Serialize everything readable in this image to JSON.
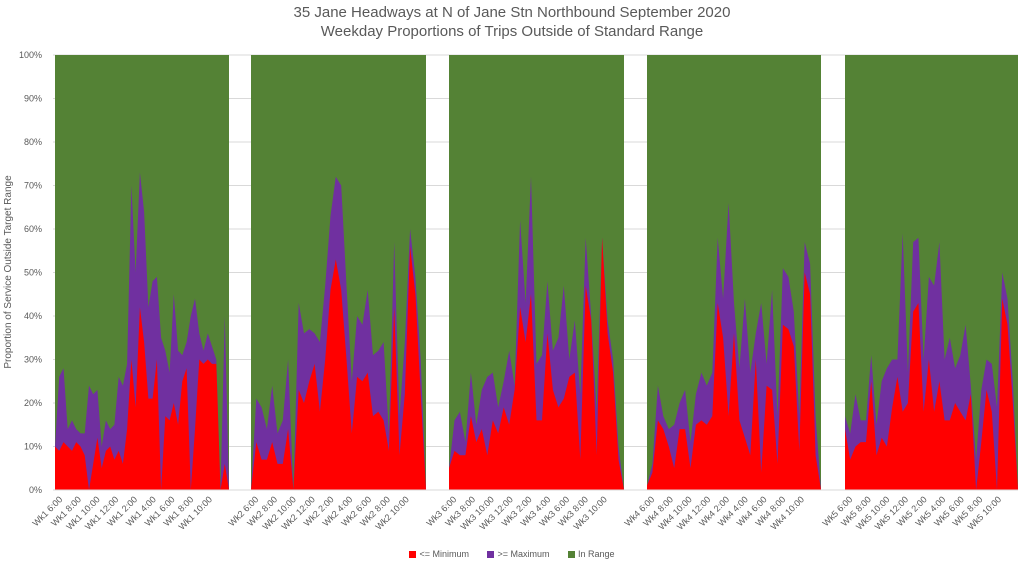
{
  "chart_data": {
    "type": "area",
    "stacked": true,
    "title": "35 Jane Headways at N of Jane Stn Northbound September 2020",
    "subtitle": "Weekday Proportions of Trips Outside of Standard Range",
    "ylabel": "Proportion of Service Outside Target Range",
    "xlabel": "",
    "ylim": [
      0,
      1
    ],
    "yticks": [
      "0%",
      "10%",
      "20%",
      "30%",
      "40%",
      "50%",
      "60%",
      "70%",
      "80%",
      "90%",
      "100%"
    ],
    "grid": true,
    "legend_position": "bottom",
    "colors": {
      "min": "#ff0000",
      "max": "#7030a0",
      "in_range": "#548235",
      "grid": "#d9d9d9"
    },
    "legend": [
      "<=  Minimum",
      ">= Maximum",
      "In Range"
    ],
    "weeks": [
      {
        "name": "Wk1",
        "tick_labels": [
          "Wk1 6:00",
          "Wk1 8:00",
          "Wk1 10:00",
          "Wk1 12:00",
          "Wk1 2:00",
          "Wk1 4:00",
          "Wk1 6:00",
          "Wk1 8:00",
          "Wk1 10:00"
        ],
        "min": [
          0.1,
          0.09,
          0.11,
          0.1,
          0.09,
          0.11,
          0.1,
          0.08,
          0.0,
          0.06,
          0.12,
          0.05,
          0.09,
          0.1,
          0.07,
          0.09,
          0.06,
          0.14,
          0.3,
          0.19,
          0.42,
          0.34,
          0.21,
          0.21,
          0.3,
          0.0,
          0.17,
          0.16,
          0.2,
          0.15,
          0.25,
          0.28,
          0.0,
          0.14,
          0.3,
          0.29,
          0.3,
          0.29,
          0.29,
          0.0,
          0.06,
          0.0
        ],
        "total": [
          0.1,
          0.26,
          0.28,
          0.14,
          0.16,
          0.14,
          0.13,
          0.13,
          0.24,
          0.22,
          0.23,
          0.1,
          0.16,
          0.14,
          0.15,
          0.26,
          0.24,
          0.29,
          0.7,
          0.5,
          0.73,
          0.64,
          0.42,
          0.48,
          0.49,
          0.35,
          0.32,
          0.27,
          0.45,
          0.32,
          0.31,
          0.34,
          0.4,
          0.44,
          0.36,
          0.32,
          0.36,
          0.33,
          0.3,
          0.0,
          0.4,
          0.0
        ]
      },
      {
        "name": "Wk2",
        "tick_labels": [
          "Wk2 6:00",
          "Wk2 8:00",
          "Wk2 10:00",
          "Wk2 12:00",
          "Wk2 2:00",
          "Wk2 4:00",
          "Wk2 6:00",
          "Wk2 8:00",
          "Wk2 10:00"
        ],
        "min": [
          0.0,
          0.11,
          0.07,
          0.07,
          0.11,
          0.06,
          0.06,
          0.14,
          0.0,
          0.23,
          0.2,
          0.25,
          0.29,
          0.18,
          0.3,
          0.46,
          0.53,
          0.46,
          0.3,
          0.13,
          0.26,
          0.25,
          0.27,
          0.17,
          0.18,
          0.16,
          0.09,
          0.42,
          0.08,
          0.22,
          0.56,
          0.45,
          0.22,
          0.0
        ],
        "total": [
          0.0,
          0.21,
          0.19,
          0.14,
          0.24,
          0.13,
          0.16,
          0.3,
          0.0,
          0.43,
          0.36,
          0.37,
          0.36,
          0.34,
          0.47,
          0.63,
          0.72,
          0.7,
          0.47,
          0.25,
          0.4,
          0.38,
          0.46,
          0.31,
          0.32,
          0.34,
          0.13,
          0.57,
          0.17,
          0.34,
          0.6,
          0.49,
          0.3,
          0.0
        ]
      },
      {
        "name": "Wk3",
        "tick_labels": [
          "Wk3 6:00",
          "Wk3 8:00",
          "Wk3 10:00",
          "Wk3 12:00",
          "Wk3 2:00",
          "Wk3 4:00",
          "Wk3 6:00",
          "Wk3 8:00",
          "Wk3 10:00"
        ],
        "min": [
          0.05,
          0.09,
          0.08,
          0.08,
          0.17,
          0.11,
          0.14,
          0.08,
          0.16,
          0.13,
          0.19,
          0.15,
          0.23,
          0.42,
          0.34,
          0.45,
          0.16,
          0.16,
          0.36,
          0.23,
          0.19,
          0.21,
          0.26,
          0.27,
          0.07,
          0.47,
          0.39,
          0.08,
          0.58,
          0.36,
          0.27,
          0.07,
          0.0
        ],
        "total": [
          0.05,
          0.16,
          0.18,
          0.11,
          0.27,
          0.15,
          0.23,
          0.26,
          0.27,
          0.19,
          0.25,
          0.32,
          0.24,
          0.62,
          0.43,
          0.72,
          0.29,
          0.31,
          0.48,
          0.32,
          0.35,
          0.47,
          0.3,
          0.39,
          0.22,
          0.58,
          0.4,
          0.18,
          0.58,
          0.39,
          0.3,
          0.1,
          0.0
        ]
      },
      {
        "name": "Wk4",
        "tick_labels": [
          "Wk4 6:00",
          "Wk4 8:00",
          "Wk4 10:00",
          "Wk4 12:00",
          "Wk4 2:00",
          "Wk4 4:00",
          "Wk4 6:00",
          "Wk4 8:00",
          "Wk4 10:00"
        ],
        "min": [
          0.01,
          0.04,
          0.16,
          0.14,
          0.1,
          0.05,
          0.14,
          0.14,
          0.05,
          0.15,
          0.16,
          0.15,
          0.17,
          0.43,
          0.35,
          0.17,
          0.36,
          0.16,
          0.12,
          0.08,
          0.3,
          0.04,
          0.24,
          0.23,
          0.06,
          0.38,
          0.37,
          0.33,
          0.09,
          0.5,
          0.45,
          0.08,
          0.0
        ],
        "total": [
          0.01,
          0.06,
          0.24,
          0.17,
          0.14,
          0.15,
          0.2,
          0.23,
          0.11,
          0.22,
          0.27,
          0.24,
          0.27,
          0.58,
          0.44,
          0.66,
          0.43,
          0.28,
          0.44,
          0.27,
          0.36,
          0.43,
          0.29,
          0.46,
          0.17,
          0.51,
          0.49,
          0.41,
          0.17,
          0.57,
          0.52,
          0.17,
          0.0
        ]
      },
      {
        "name": "Wk5",
        "tick_labels": [
          "Wk5 6:00",
          "Wk5 8:00",
          "Wk5 10:00",
          "Wk5 12:00",
          "Wk5 2:00",
          "Wk5 4:00",
          "Wk5 6:00",
          "Wk5 8:00",
          "Wk5 10:00"
        ],
        "min": [
          0.14,
          0.07,
          0.1,
          0.11,
          0.11,
          0.25,
          0.08,
          0.12,
          0.1,
          0.19,
          0.26,
          0.18,
          0.2,
          0.41,
          0.43,
          0.18,
          0.3,
          0.18,
          0.25,
          0.16,
          0.16,
          0.2,
          0.18,
          0.16,
          0.22,
          0.0,
          0.11,
          0.23,
          0.18,
          0.0,
          0.44,
          0.38,
          0.2,
          0.0
        ],
        "total": [
          0.17,
          0.13,
          0.22,
          0.16,
          0.16,
          0.31,
          0.15,
          0.25,
          0.28,
          0.3,
          0.3,
          0.59,
          0.27,
          0.57,
          0.58,
          0.3,
          0.49,
          0.47,
          0.57,
          0.3,
          0.35,
          0.28,
          0.31,
          0.38,
          0.24,
          0.07,
          0.23,
          0.3,
          0.29,
          0.19,
          0.5,
          0.44,
          0.25,
          0.0
        ]
      }
    ]
  },
  "legend": [
    {
      "key": "min",
      "label": "<=  Minimum"
    },
    {
      "key": "max",
      "label": ">= Maximum"
    },
    {
      "key": "in_range",
      "label": "In Range"
    }
  ]
}
